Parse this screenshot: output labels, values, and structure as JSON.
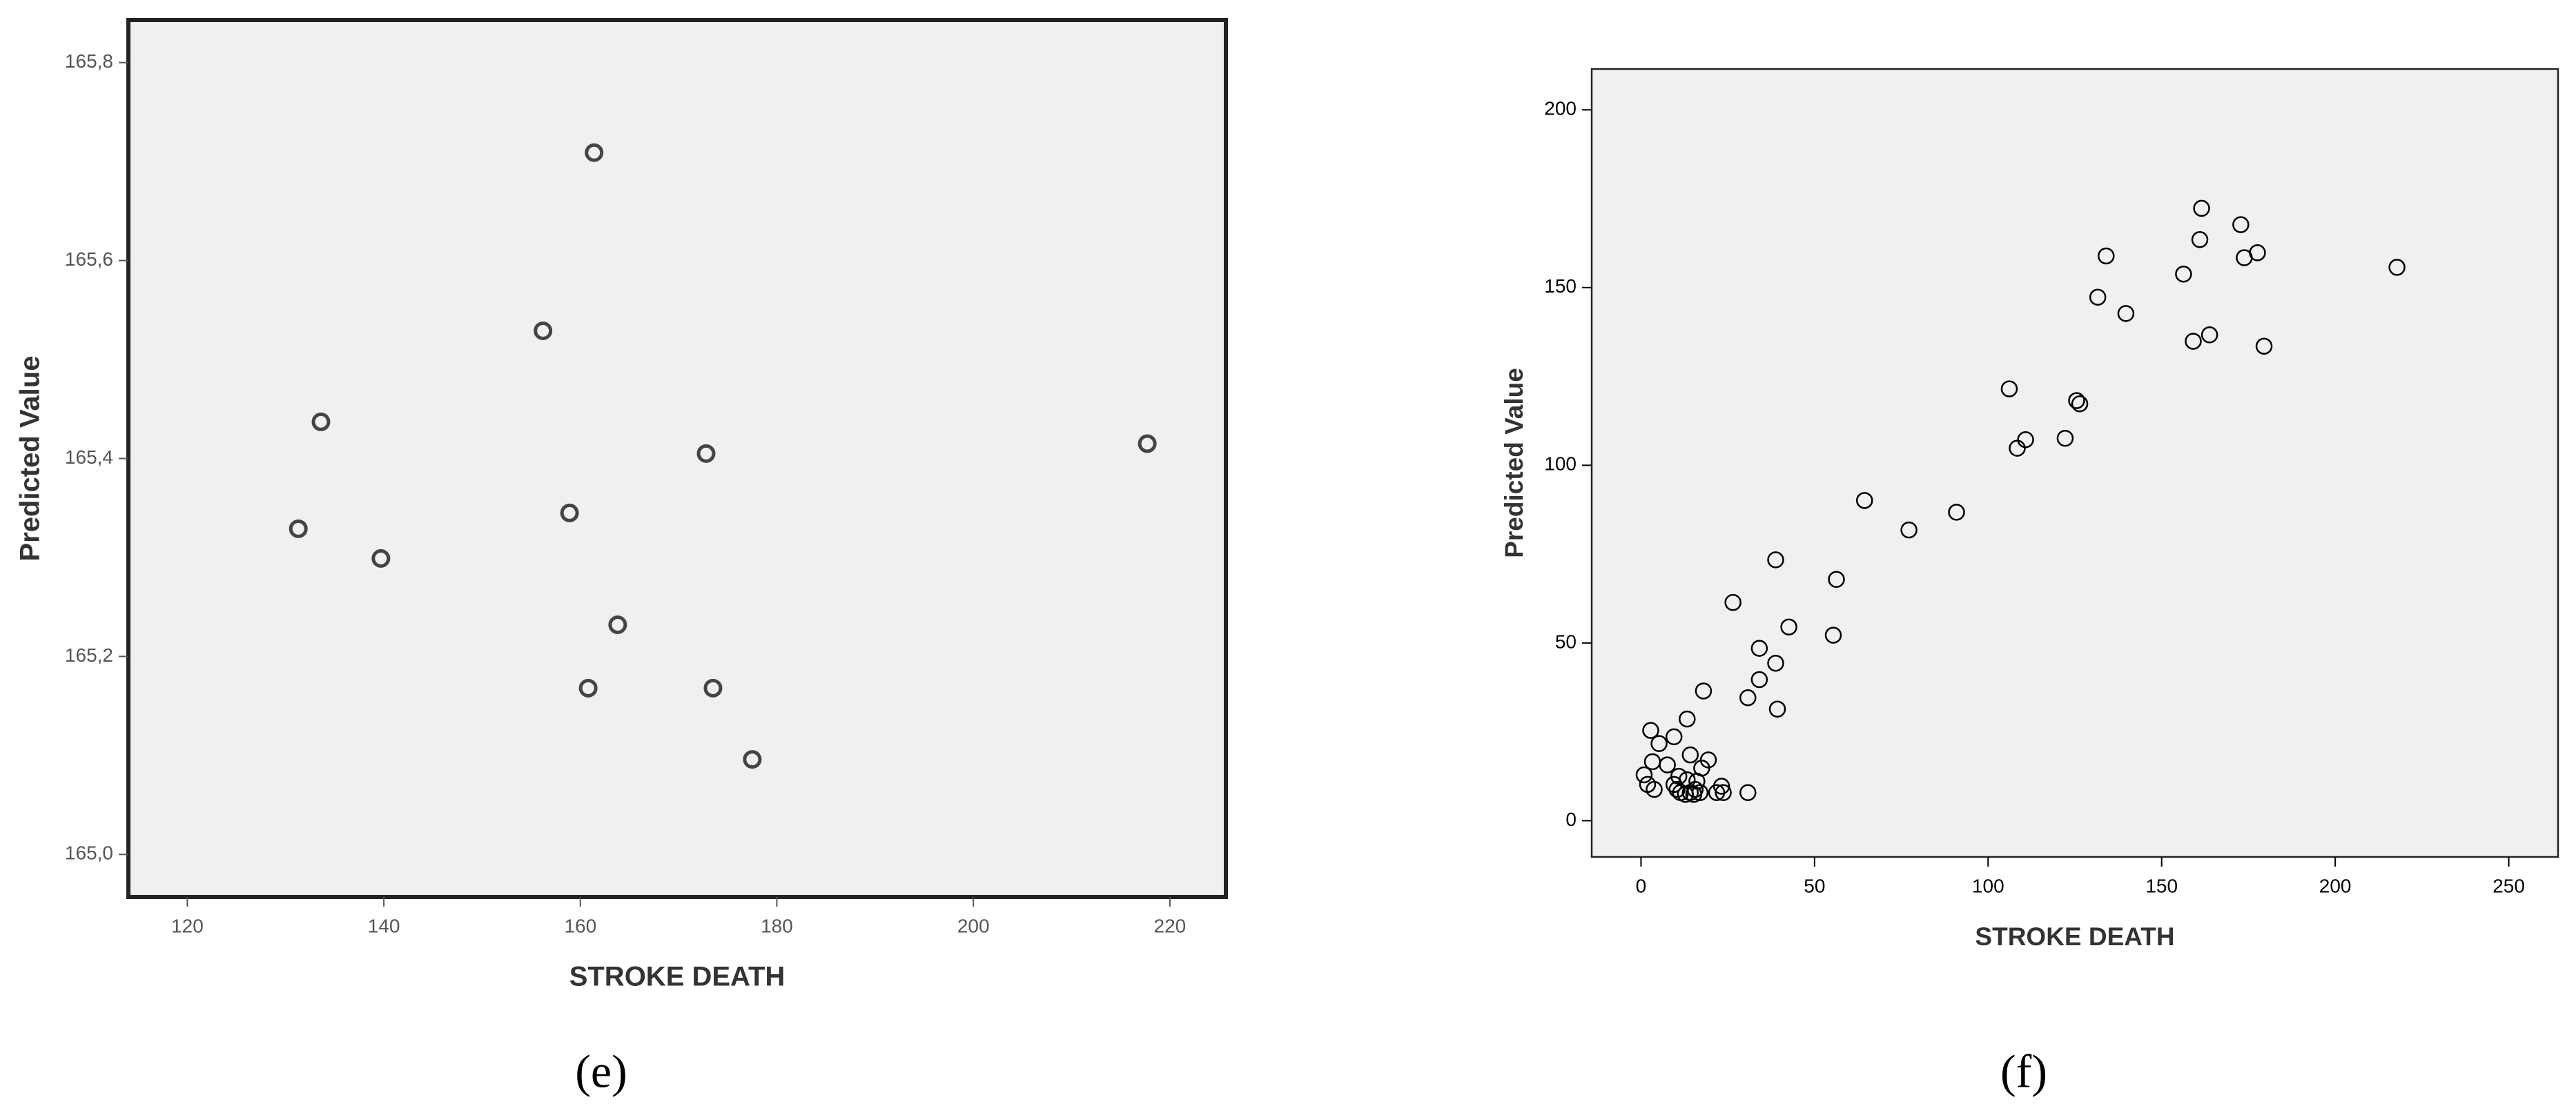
{
  "chart_data": [
    {
      "type": "scatter",
      "caption": "(e)",
      "xlabel": "STROKE DEATH",
      "ylabel": "Predicted Value",
      "color": "#444444",
      "background": "#f0f0f0",
      "xlim": [
        114.0,
        225.7
      ],
      "xticks": [
        120,
        140,
        160,
        180,
        200,
        220
      ],
      "ylim": [
        164.957,
        165.843
      ],
      "yticks": [
        {
          "value": 165.0,
          "label": "165,0"
        },
        {
          "value": 165.2,
          "label": "165,2"
        },
        {
          "value": 165.4,
          "label": "165,4"
        },
        {
          "value": 165.6,
          "label": "165,6"
        },
        {
          "value": 165.8,
          "label": "165,8"
        }
      ],
      "x": [
        161.4,
        156.2,
        133.6,
        172.8,
        217.7,
        131.3,
        158.9,
        139.7,
        163.8,
        160.8,
        173.5,
        177.5
      ],
      "y": [
        165.709,
        165.529,
        165.437,
        165.405,
        165.415,
        165.329,
        165.345,
        165.299,
        165.232,
        165.168,
        165.168,
        165.096
      ]
    },
    {
      "type": "scatter",
      "caption": "(f)",
      "xlabel": "STROKE DEATH",
      "ylabel": "Predicted Value",
      "color": "#000000",
      "background": "#f0f0f0",
      "xlim": [
        -14.2,
        264.2
      ],
      "xticks": [
        0,
        50,
        100,
        150,
        200,
        250
      ],
      "ylim": [
        -10.2,
        211.5
      ],
      "yticks": [
        0,
        50,
        100,
        150,
        200
      ],
      "x": [
        161.5,
        172.8,
        161,
        177.6,
        173.8,
        134,
        217.8,
        156.3,
        131.6,
        139.7,
        163.8,
        159.1,
        179.5,
        106.1,
        125.5,
        126.4,
        110.8,
        108.4,
        122.2,
        64.4,
        90.9,
        77.2,
        38.8,
        56.3,
        26.5,
        42.6,
        55.4,
        34.1,
        38.8,
        34.1,
        18,
        30.8,
        39.3,
        13.3,
        2.8,
        9.5,
        5.2,
        14.2,
        19.4,
        3.3,
        7.6,
        17.5,
        0.9,
        10.9,
        13.3,
        16.1,
        1.9,
        9.5,
        23.2,
        3.8,
        10.4,
        15.6,
        11.4,
        14.2,
        17,
        21.8,
        23.7,
        30.8,
        15.2,
        12.8
      ],
      "y": [
        172.3,
        167.7,
        163.5,
        159.8,
        158.4,
        158.9,
        155.7,
        153.8,
        147.3,
        142.7,
        136.7,
        134.9,
        133.5,
        121.5,
        118.2,
        117.3,
        107.2,
        104.8,
        107.6,
        90.1,
        86.8,
        81.8,
        73.4,
        67.9,
        61.4,
        54.5,
        52.2,
        48.5,
        44.3,
        39.7,
        36.5,
        34.6,
        31.4,
        28.6,
        25.4,
        23.6,
        21.7,
        18.5,
        17.1,
        16.6,
        15.7,
        14.8,
        12.9,
        12.5,
        11.5,
        11.1,
        10.2,
        10.2,
        9.7,
        8.8,
        8.8,
        8.8,
        7.9,
        7.9,
        7.9,
        7.9,
        7.9,
        7.9,
        7.4,
        7.4
      ]
    }
  ]
}
